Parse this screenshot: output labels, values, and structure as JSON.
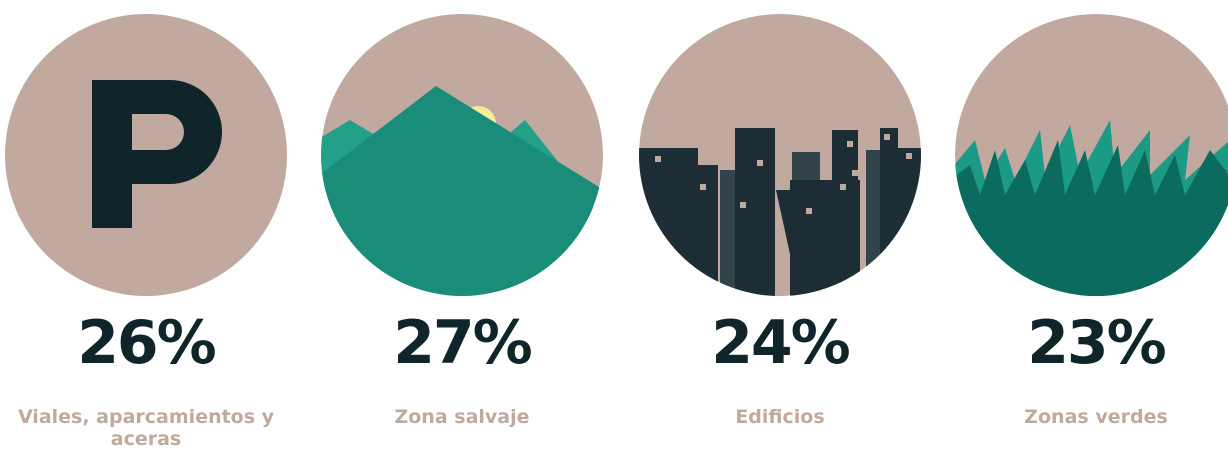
{
  "items": [
    {
      "value_label": "26%",
      "label": "Viales, aparcamientos y aceras"
    },
    {
      "value_label": "27%",
      "label": "Zona salvaje"
    },
    {
      "value_label": "24%",
      "label": "Edificios"
    },
    {
      "value_label": "23%",
      "label": "Zonas verdes"
    }
  ]
}
